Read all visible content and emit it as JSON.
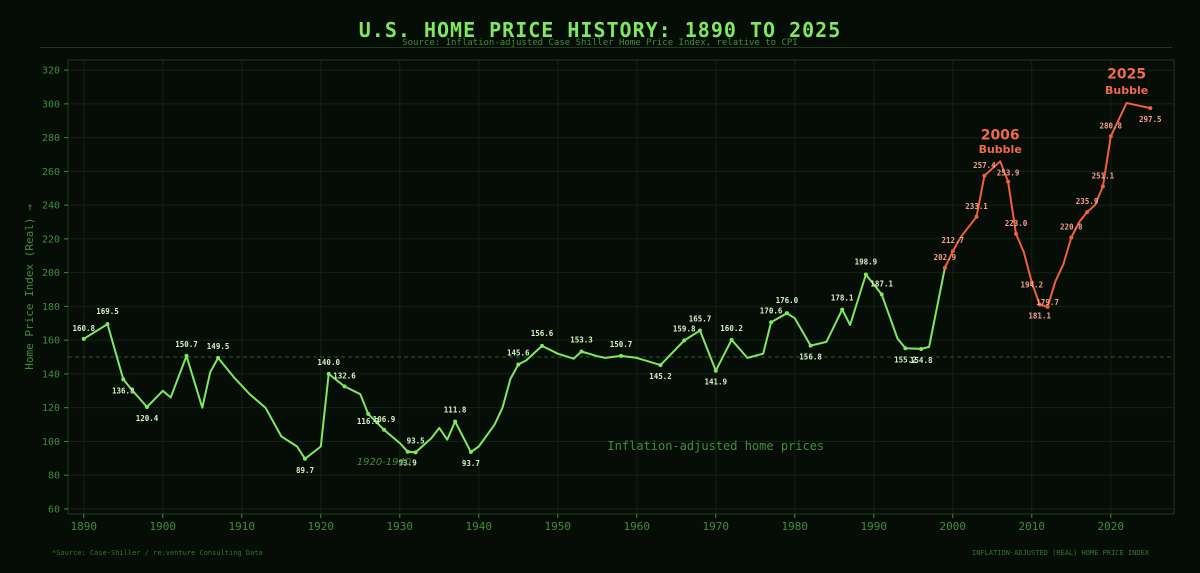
{
  "header": {
    "title": "U.S. HOME PRICE HISTORY: 1890 TO 2025",
    "subtitle": "Source: Inflation-adjusted Case Shiller Home Price Index, relative to CPI"
  },
  "footer": {
    "left": "*Source: Case-Shiller / re:venture Consulting Data",
    "right": "INFLATION-ADJUSTED (REAL) HOME PRICE INDEX"
  },
  "colors": {
    "background": "#060c06",
    "line_normal": "#7ee860",
    "line_bubble": "#f0603a",
    "axis": "#3f8f3a",
    "grid": "#132413",
    "label": "#d4f2c4",
    "bubble_label": "#f4a28c",
    "bubble_title": "#f06a4a"
  },
  "chart_data": {
    "type": "line",
    "title": "U.S. HOME PRICE HISTORY: 1890 TO 2025",
    "ylabel": "Home Price Index (Real) →",
    "xlabel": "",
    "xlim": [
      1888,
      2028
    ],
    "ylim": [
      57,
      326
    ],
    "x_ticks": [
      1890,
      1900,
      1910,
      1920,
      1930,
      1940,
      1950,
      1960,
      1970,
      1980,
      1990,
      2000,
      2010,
      2020
    ],
    "y_ticks": [
      60,
      80,
      100,
      120,
      140,
      160,
      180,
      200,
      220,
      240,
      260,
      280,
      300,
      320
    ],
    "grid": true,
    "reference_line": 150,
    "series": [
      {
        "segment": "pre-bubble",
        "x": [
          1890,
          1893,
          1895,
          1896,
          1898,
          1900,
          1901,
          1903,
          1905,
          1906,
          1907,
          1909,
          1911,
          1913,
          1915,
          1917,
          1918,
          1920,
          1921,
          1923,
          1925,
          1926,
          1928,
          1930,
          1931,
          1932,
          1934,
          1935,
          1936,
          1937,
          1939,
          1940,
          1942,
          1943,
          1944,
          1945,
          1946,
          1948,
          1950,
          1952,
          1953,
          1955,
          1956,
          1958,
          1960,
          1963,
          1966,
          1968,
          1970,
          1972,
          1974,
          1976,
          1977,
          1979,
          1980,
          1982,
          1984,
          1986,
          1987,
          1989,
          1991,
          1993,
          1994,
          1996,
          1997,
          1999
        ],
        "y": [
          160.8,
          169.5,
          136.8,
          131,
          120.4,
          130,
          126,
          150.7,
          120,
          141,
          149.5,
          138,
          128,
          120,
          103,
          97,
          89.7,
          97,
          140.0,
          132.6,
          128,
          116.3,
          106.9,
          99,
          93.9,
          93.5,
          102,
          108,
          101,
          111.8,
          93.7,
          97,
          110,
          120,
          137,
          145.6,
          148,
          156.6,
          152,
          149,
          153.3,
          150.5,
          149.5,
          150.7,
          149.5,
          145.2,
          159.8,
          165.7,
          141.9,
          160.2,
          149.5,
          152,
          170.6,
          176.0,
          173,
          156.8,
          159,
          178.1,
          169,
          198.9,
          187.1,
          161,
          155.2,
          154.8,
          156,
          202.9
        ]
      },
      {
        "segment": "2006 Bubble",
        "x": [
          1999,
          2000,
          2001,
          2003,
          2004,
          2006,
          2007,
          2008,
          2009,
          2010,
          2011,
          2012
        ],
        "y": [
          202.9,
          212.7,
          221,
          233.1,
          257.4,
          266,
          253.9,
          223.0,
          212,
          194.2,
          181.1,
          179.7
        ]
      },
      {
        "segment": "2025 Bubble",
        "x": [
          2012,
          2013,
          2014,
          2015,
          2016,
          2017,
          2018,
          2019,
          2020,
          2022,
          2025
        ],
        "y": [
          179.7,
          195,
          205,
          220.8,
          230,
          235.9,
          240,
          251.1,
          280.8,
          300.5,
          297.5
        ]
      }
    ],
    "data_labels": [
      {
        "x": 1890,
        "y": 160.8,
        "text": "160.8",
        "dy": -8,
        "kind": "normal"
      },
      {
        "x": 1893,
        "y": 169.5,
        "text": "169.5",
        "dy": -10,
        "kind": "normal"
      },
      {
        "x": 1895,
        "y": 136.8,
        "text": "136.8",
        "dy": 14,
        "kind": "normal"
      },
      {
        "x": 1898,
        "y": 120.4,
        "text": "120.4",
        "dy": 14,
        "kind": "normal"
      },
      {
        "x": 1903,
        "y": 150.7,
        "text": "150.7",
        "dy": -9,
        "kind": "normal"
      },
      {
        "x": 1907,
        "y": 149.5,
        "text": "149.5",
        "dy": -9,
        "kind": "normal"
      },
      {
        "x": 1918,
        "y": 89.7,
        "text": "89.7",
        "dy": 14,
        "kind": "normal"
      },
      {
        "x": 1921,
        "y": 140.0,
        "text": "140.0",
        "dy": -9,
        "kind": "normal"
      },
      {
        "x": 1923,
        "y": 132.6,
        "text": "132.6",
        "dy": -8,
        "kind": "normal"
      },
      {
        "x": 1926,
        "y": 116.3,
        "text": "116.3",
        "dy": 10,
        "kind": "normal"
      },
      {
        "x": 1928,
        "y": 106.9,
        "text": "106.9",
        "dy": -8,
        "kind": "normal"
      },
      {
        "x": 1931,
        "y": 93.9,
        "text": "93.9",
        "dy": 14,
        "kind": "normal"
      },
      {
        "x": 1932,
        "y": 93.5,
        "text": "93.5",
        "dy": -9,
        "kind": "normal"
      },
      {
        "x": 1937,
        "y": 111.8,
        "text": "111.8",
        "dy": -9,
        "kind": "normal"
      },
      {
        "x": 1939,
        "y": 93.7,
        "text": "93.7",
        "dy": 14,
        "kind": "normal"
      },
      {
        "x": 1945,
        "y": 145.6,
        "text": "145.6",
        "dy": -9,
        "kind": "normal"
      },
      {
        "x": 1948,
        "y": 156.6,
        "text": "156.6",
        "dy": -10,
        "kind": "normal"
      },
      {
        "x": 1953,
        "y": 153.3,
        "text": "153.3",
        "dy": -9,
        "kind": "normal"
      },
      {
        "x": 1958,
        "y": 150.7,
        "text": "150.7",
        "dy": -9,
        "kind": "normal"
      },
      {
        "x": 1963,
        "y": 145.2,
        "text": "145.2",
        "dy": 14,
        "kind": "normal"
      },
      {
        "x": 1966,
        "y": 159.8,
        "text": "159.8",
        "dy": -9,
        "kind": "normal"
      },
      {
        "x": 1968,
        "y": 165.7,
        "text": "165.7",
        "dy": -9,
        "kind": "normal"
      },
      {
        "x": 1970,
        "y": 141.9,
        "text": "141.9",
        "dy": 14,
        "kind": "normal"
      },
      {
        "x": 1972,
        "y": 160.2,
        "text": "160.2",
        "dy": -9,
        "kind": "normal"
      },
      {
        "x": 1977,
        "y": 170.6,
        "text": "170.6",
        "dy": -9,
        "kind": "normal"
      },
      {
        "x": 1979,
        "y": 176.0,
        "text": "176.0",
        "dy": -10,
        "kind": "normal"
      },
      {
        "x": 1982,
        "y": 156.8,
        "text": "156.8",
        "dy": 14,
        "kind": "normal"
      },
      {
        "x": 1986,
        "y": 178.1,
        "text": "178.1",
        "dy": -9,
        "kind": "normal"
      },
      {
        "x": 1989,
        "y": 198.9,
        "text": "198.9",
        "dy": -10,
        "kind": "normal"
      },
      {
        "x": 1991,
        "y": 187.1,
        "text": "187.1",
        "dy": -8,
        "kind": "normal"
      },
      {
        "x": 1994,
        "y": 155.2,
        "text": "155.2",
        "dy": 14,
        "kind": "normal"
      },
      {
        "x": 1996,
        "y": 154.8,
        "text": "154.8",
        "dy": 14,
        "kind": "normal"
      },
      {
        "x": 1999,
        "y": 202.9,
        "text": "202.9",
        "dy": -8,
        "kind": "bubble"
      },
      {
        "x": 2000,
        "y": 212.7,
        "text": "212.7",
        "dy": -8,
        "kind": "bubble"
      },
      {
        "x": 2003,
        "y": 233.1,
        "text": "233.1",
        "dy": -8,
        "kind": "bubble"
      },
      {
        "x": 2004,
        "y": 257.4,
        "text": "257.4",
        "dy": -8,
        "kind": "bubble"
      },
      {
        "x": 2007,
        "y": 253.9,
        "text": "253.9",
        "dy": -6,
        "kind": "bubble"
      },
      {
        "x": 2008,
        "y": 223.0,
        "text": "223.0",
        "dy": -8,
        "kind": "bubble"
      },
      {
        "x": 2010,
        "y": 194.2,
        "text": "194.2",
        "dy": 5,
        "kind": "bubble"
      },
      {
        "x": 2011,
        "y": 181.1,
        "text": "181.1",
        "dy": 14,
        "kind": "bubble"
      },
      {
        "x": 2012,
        "y": 179.7,
        "text": "179.7",
        "dy": -2,
        "kind": "bubble"
      },
      {
        "x": 2015,
        "y": 220.8,
        "text": "220.8",
        "dy": -8,
        "kind": "bubble"
      },
      {
        "x": 2017,
        "y": 235.9,
        "text": "235.9",
        "dy": -8,
        "kind": "bubble"
      },
      {
        "x": 2019,
        "y": 251.1,
        "text": "251.1",
        "dy": -8,
        "kind": "bubble"
      },
      {
        "x": 2020,
        "y": 280.8,
        "text": "280.8",
        "dy": -8,
        "kind": "bubble"
      },
      {
        "x": 2025,
        "y": 297.5,
        "text": "297.5",
        "dy": 14,
        "kind": "bubble"
      }
    ],
    "annotations": [
      {
        "text": "2006",
        "x": 2006,
        "y": 279,
        "style": "bubble-year"
      },
      {
        "text": "Bubble",
        "x": 2006,
        "y": 271,
        "style": "bubble-word"
      },
      {
        "text": "2025",
        "x": 2022,
        "y": 315,
        "style": "bubble-year"
      },
      {
        "text": "Bubble",
        "x": 2022,
        "y": 306,
        "style": "bubble-word"
      },
      {
        "text": "Inflation-adjusted home prices",
        "x": 1970,
        "y": 95,
        "style": "mid-note"
      },
      {
        "text": "1920-1940",
        "x": 1928,
        "y": 86,
        "style": "era-note"
      }
    ]
  }
}
